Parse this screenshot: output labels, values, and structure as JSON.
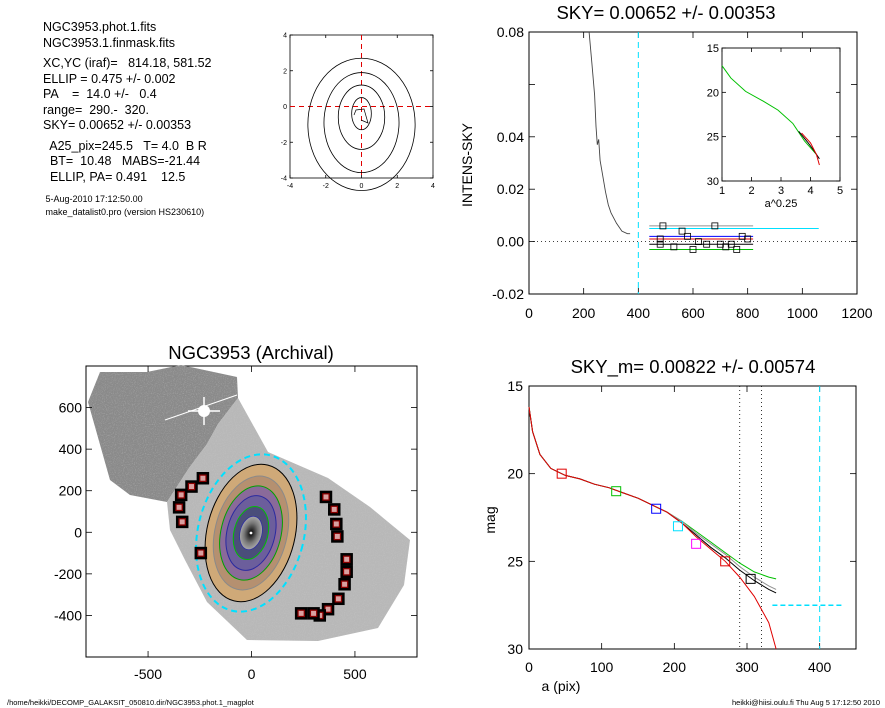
{
  "header_info": {
    "line1": "NGC3953.phot.1.fits",
    "line2": "NGC3953.1.finmask.fits",
    "line3": "XC,YC (iraf)=   814.18, 581.52",
    "line4": "ELLIP = 0.475 +/- 0.002",
    "line5": "PA    =  14.0 +/-   0.4",
    "line6": "range=  290.-  320.",
    "line7": "SKY= 0.00652 +/- 0.00353",
    "line8": "  A25_pix=245.5   T= 4.0  B R",
    "line9": "  BT=  10.48   MABS=-21.44",
    "line10": "  ELLIP, PA= 0.491    12.5",
    "date": " 5-Aug-2010 17:12:50.00",
    "program": " make_datalist0.pro (version HS230610)"
  },
  "footer": {
    "left": "/home/heikki/DECOMP_GALAKSIT_050810.dir/NGC3953.phot.1_magplot",
    "right": "heikki@hiisi.oulu.fi  Thu Aug  5 17:12:50 2010"
  },
  "colors": {
    "black": "#000000",
    "red": "#e00000",
    "green": "#00c000",
    "blue": "#0000ff",
    "cyan": "#00e0ff",
    "magenta": "#ff00ff",
    "grey": "#909090",
    "darkred": "#8b0000"
  },
  "chart_data": [
    {
      "type": "line",
      "panel": "contour",
      "xlim": [
        -4,
        4
      ],
      "ylim": [
        -4,
        4
      ],
      "xticks": [
        "-4",
        "-2",
        "0",
        "2",
        "4"
      ],
      "yticks": [
        "4",
        "2",
        "0",
        "-2",
        "-4"
      ],
      "contours": [
        {
          "cx": 0,
          "cy": -0.4,
          "rx": 0.55,
          "ry": 0.9
        },
        {
          "cx": 0,
          "cy": -0.6,
          "rx": 1.3,
          "ry": 1.8
        },
        {
          "cx": 0,
          "cy": -0.9,
          "rx": 2.1,
          "ry": 2.8
        },
        {
          "cx": 0,
          "cy": -1.0,
          "rx": 3.0,
          "ry": 3.7
        }
      ]
    },
    {
      "type": "line",
      "panel": "sky",
      "title": "SKY= 0.00652 +/- 0.00353",
      "ylabel": "INTENS-SKY",
      "xlim": [
        0,
        1200
      ],
      "ylim": [
        -0.02,
        0.08
      ],
      "xticks": [
        "0",
        "200",
        "400",
        "600",
        "800",
        "1000",
        "1200"
      ],
      "yticks": [
        "0.08",
        "0.04",
        "0.02",
        "0.00",
        "-0.02"
      ],
      "profile": {
        "x": [
          220,
          230,
          240,
          245,
          250,
          255,
          260,
          270,
          280,
          290,
          300,
          320,
          340,
          360,
          370
        ],
        "y": [
          0.08,
          0.068,
          0.056,
          0.044,
          0.037,
          0.039,
          0.031,
          0.025,
          0.019,
          0.014,
          0.011,
          0.007,
          0.004,
          0.003,
          0.003
        ]
      },
      "sky_window": 400,
      "levels": [
        {
          "color": "cyan",
          "x1": 440,
          "x2": 1060,
          "y": 0.005
        },
        {
          "color": "grey",
          "x1": 440,
          "x2": 820,
          "y": 0.006
        },
        {
          "color": "blue",
          "x1": 440,
          "x2": 820,
          "y": 0.002
        },
        {
          "color": "red",
          "x1": 440,
          "x2": 820,
          "y": 0.001
        },
        {
          "color": "black",
          "x1": 440,
          "x2": 820,
          "y": -0.001
        },
        {
          "color": "green",
          "x1": 440,
          "x2": 820,
          "y": -0.003
        }
      ],
      "squares": [
        {
          "x": 480,
          "y": 0.001
        },
        {
          "x": 480,
          "y": -0.001
        },
        {
          "x": 490,
          "y": 0.006
        },
        {
          "x": 530,
          "y": -0.002
        },
        {
          "x": 560,
          "y": 0.004
        },
        {
          "x": 580,
          "y": 0.002
        },
        {
          "x": 600,
          "y": -0.003
        },
        {
          "x": 620,
          "y": 0.0
        },
        {
          "x": 650,
          "y": -0.001
        },
        {
          "x": 680,
          "y": 0.006
        },
        {
          "x": 700,
          "y": -0.001
        },
        {
          "x": 720,
          "y": -0.002
        },
        {
          "x": 740,
          "y": -0.001
        },
        {
          "x": 760,
          "y": -0.003
        },
        {
          "x": 780,
          "y": 0.002
        },
        {
          "x": 800,
          "y": 0.001
        }
      ],
      "inset": {
        "xlabel": "a^0.25",
        "xlim": [
          1,
          5
        ],
        "ylim": [
          15,
          30
        ],
        "xticks": [
          "1",
          "2",
          "3",
          "4",
          "5"
        ],
        "yticks": [
          "15",
          "20",
          "25",
          "30"
        ],
        "green": {
          "x": [
            1.0,
            1.3,
            1.8,
            2.4,
            2.9,
            3.4,
            3.8,
            4.2
          ],
          "y": [
            17,
            18.4,
            19.9,
            21.0,
            22.0,
            23.5,
            25.5,
            27.0
          ]
        },
        "black": {
          "x": [
            3.6,
            3.9,
            4.1,
            4.3
          ],
          "y": [
            24.4,
            25.6,
            26.5,
            27.5
          ]
        },
        "red": {
          "x": [
            3.7,
            4.0,
            4.2,
            4.3
          ],
          "y": [
            24.6,
            25.7,
            27.0,
            28.2
          ]
        }
      }
    },
    {
      "type": "scatter",
      "panel": "image",
      "title": "NGC3953 (Archival)",
      "xlim": [
        -800,
        800
      ],
      "ylim": [
        -600,
        800
      ],
      "xticks": [
        "-500",
        "0",
        "500"
      ],
      "yticks": [
        "600",
        "400",
        "200",
        "0",
        "-200",
        "-400"
      ],
      "masks": [
        {
          "x": -235,
          "y": 260
        },
        {
          "x": -290,
          "y": 220
        },
        {
          "x": -340,
          "y": 180
        },
        {
          "x": -350,
          "y": 120
        },
        {
          "x": -335,
          "y": 50
        },
        {
          "x": -245,
          "y": -100
        },
        {
          "x": 360,
          "y": 170
        },
        {
          "x": 400,
          "y": 110
        },
        {
          "x": 410,
          "y": 40
        },
        {
          "x": 415,
          "y": -20
        },
        {
          "x": 460,
          "y": -130
        },
        {
          "x": 460,
          "y": -190
        },
        {
          "x": 450,
          "y": -250
        },
        {
          "x": 420,
          "y": -320
        },
        {
          "x": 370,
          "y": -370
        },
        {
          "x": 330,
          "y": -400
        },
        {
          "x": 240,
          "y": -390
        },
        {
          "x": 300,
          "y": -390
        }
      ]
    },
    {
      "type": "line",
      "panel": "mag",
      "title": "SKY_m=  0.00822 +/- 0.00574",
      "xlabel": "a (pix)",
      "ylabel": "mag",
      "xlim": [
        0,
        450
      ],
      "ylim": [
        15,
        30
      ],
      "xticks": [
        "0",
        "100",
        "200",
        "300",
        "400"
      ],
      "yticks": [
        "15",
        "20",
        "25",
        "30"
      ],
      "dotted_x": [
        290,
        320
      ],
      "dashed_x": 400,
      "profile_x": [
        0,
        5,
        15,
        30,
        50,
        70,
        90,
        110,
        130,
        150,
        170,
        190,
        210,
        230,
        250,
        270,
        290,
        310,
        330,
        340
      ],
      "series": [
        {
          "color": "green",
          "y": [
            16.2,
            17.6,
            18.9,
            19.7,
            20.1,
            20.3,
            20.6,
            20.8,
            21.1,
            21.4,
            21.8,
            22.2,
            22.7,
            23.3,
            23.9,
            24.5,
            25.1,
            25.6,
            25.9,
            26.0
          ]
        },
        {
          "color": "black",
          "y": [
            16.2,
            17.6,
            18.9,
            19.7,
            20.1,
            20.3,
            20.6,
            20.8,
            21.1,
            21.4,
            21.8,
            22.2,
            22.8,
            23.5,
            24.2,
            24.8,
            25.5,
            26.1,
            26.6,
            26.8
          ]
        },
        {
          "color": "grey",
          "y": [
            16.2,
            17.6,
            18.9,
            19.7,
            20.1,
            20.3,
            20.6,
            20.8,
            21.1,
            21.4,
            21.8,
            22.2,
            22.7,
            23.4,
            24.0,
            24.6,
            25.3,
            25.9,
            26.4,
            26.6
          ]
        },
        {
          "color": "red",
          "y": [
            16.2,
            17.6,
            18.9,
            19.7,
            20.1,
            20.3,
            20.6,
            20.8,
            21.1,
            21.4,
            21.8,
            22.2,
            22.8,
            23.6,
            24.3,
            25.0,
            25.9,
            27.0,
            28.5,
            30.0
          ]
        }
      ],
      "markers": [
        {
          "x": 45,
          "y": 20.0,
          "color": "red"
        },
        {
          "x": 120,
          "y": 21.0,
          "color": "green"
        },
        {
          "x": 175,
          "y": 22.0,
          "color": "blue"
        },
        {
          "x": 205,
          "y": 23.0,
          "color": "cyan"
        },
        {
          "x": 230,
          "y": 24.0,
          "color": "magenta"
        },
        {
          "x": 270,
          "y": 25.0,
          "color": "red"
        },
        {
          "x": 305,
          "y": 26.0,
          "color": "black"
        }
      ],
      "cyan_dash": {
        "x": [
          335,
          345,
          380,
          400,
          430
        ],
        "y": [
          27.5,
          27.5,
          27.5,
          27.5,
          27.5
        ]
      }
    }
  ]
}
